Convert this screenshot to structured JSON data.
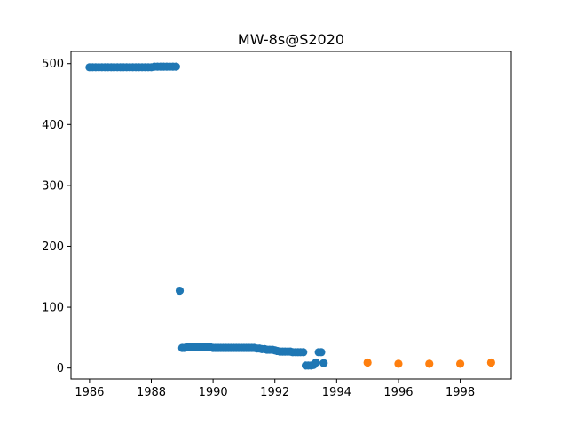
{
  "chart_data": {
    "type": "scatter",
    "title": "MW-8s@S2020",
    "xlabel": "",
    "ylabel": "",
    "xlim": [
      1985.4,
      1999.65
    ],
    "ylim": [
      -18,
      520
    ],
    "xticks": [
      1986,
      1988,
      1990,
      1992,
      1994,
      1996,
      1998
    ],
    "yticks": [
      0,
      100,
      200,
      300,
      400,
      500
    ],
    "grid": false,
    "series": [
      {
        "color": "#1f77b4",
        "points": [
          [
            1986.0,
            494
          ],
          [
            1986.1,
            494
          ],
          [
            1986.2,
            494
          ],
          [
            1986.3,
            494
          ],
          [
            1986.4,
            494
          ],
          [
            1986.5,
            494
          ],
          [
            1986.6,
            494
          ],
          [
            1986.7,
            494
          ],
          [
            1986.8,
            494
          ],
          [
            1986.9,
            494
          ],
          [
            1987.0,
            494
          ],
          [
            1987.1,
            494
          ],
          [
            1987.2,
            494
          ],
          [
            1987.3,
            494
          ],
          [
            1987.4,
            494
          ],
          [
            1987.5,
            494
          ],
          [
            1987.6,
            494
          ],
          [
            1987.7,
            494
          ],
          [
            1987.8,
            494
          ],
          [
            1987.9,
            494
          ],
          [
            1988.0,
            494
          ],
          [
            1988.1,
            495
          ],
          [
            1988.2,
            495
          ],
          [
            1988.3,
            495
          ],
          [
            1988.4,
            495
          ],
          [
            1988.5,
            495
          ],
          [
            1988.6,
            495
          ],
          [
            1988.7,
            495
          ],
          [
            1988.8,
            495
          ],
          [
            1988.92,
            127
          ],
          [
            1989.0,
            33
          ],
          [
            1989.08,
            33
          ],
          [
            1989.17,
            34
          ],
          [
            1989.25,
            34
          ],
          [
            1989.33,
            35
          ],
          [
            1989.42,
            35
          ],
          [
            1989.5,
            35
          ],
          [
            1989.58,
            35
          ],
          [
            1989.67,
            35
          ],
          [
            1989.75,
            34
          ],
          [
            1989.83,
            34
          ],
          [
            1989.92,
            34
          ],
          [
            1990.0,
            33
          ],
          [
            1990.08,
            33
          ],
          [
            1990.17,
            33
          ],
          [
            1990.25,
            33
          ],
          [
            1990.33,
            33
          ],
          [
            1990.42,
            33
          ],
          [
            1990.5,
            33
          ],
          [
            1990.58,
            33
          ],
          [
            1990.67,
            33
          ],
          [
            1990.75,
            33
          ],
          [
            1990.83,
            33
          ],
          [
            1990.92,
            33
          ],
          [
            1991.0,
            33
          ],
          [
            1991.08,
            33
          ],
          [
            1991.17,
            33
          ],
          [
            1991.25,
            33
          ],
          [
            1991.33,
            33
          ],
          [
            1991.42,
            32
          ],
          [
            1991.5,
            32
          ],
          [
            1991.58,
            31
          ],
          [
            1991.67,
            31
          ],
          [
            1991.75,
            30
          ],
          [
            1991.83,
            30
          ],
          [
            1991.92,
            30
          ],
          [
            1992.0,
            29
          ],
          [
            1992.08,
            28
          ],
          [
            1992.17,
            27
          ],
          [
            1992.25,
            27
          ],
          [
            1992.33,
            27
          ],
          [
            1992.42,
            27
          ],
          [
            1992.5,
            27
          ],
          [
            1992.58,
            26
          ],
          [
            1992.67,
            26
          ],
          [
            1992.75,
            26
          ],
          [
            1992.83,
            26
          ],
          [
            1992.92,
            26
          ],
          [
            1993.0,
            4
          ],
          [
            1993.08,
            4
          ],
          [
            1993.17,
            4
          ],
          [
            1993.25,
            5
          ],
          [
            1993.33,
            9
          ],
          [
            1993.42,
            26
          ],
          [
            1993.5,
            26
          ],
          [
            1993.58,
            8
          ]
        ]
      },
      {
        "color": "#ff7f0e",
        "points": [
          [
            1995,
            9
          ],
          [
            1996,
            7
          ],
          [
            1997,
            7
          ],
          [
            1998,
            7
          ],
          [
            1999,
            9
          ]
        ]
      }
    ]
  }
}
